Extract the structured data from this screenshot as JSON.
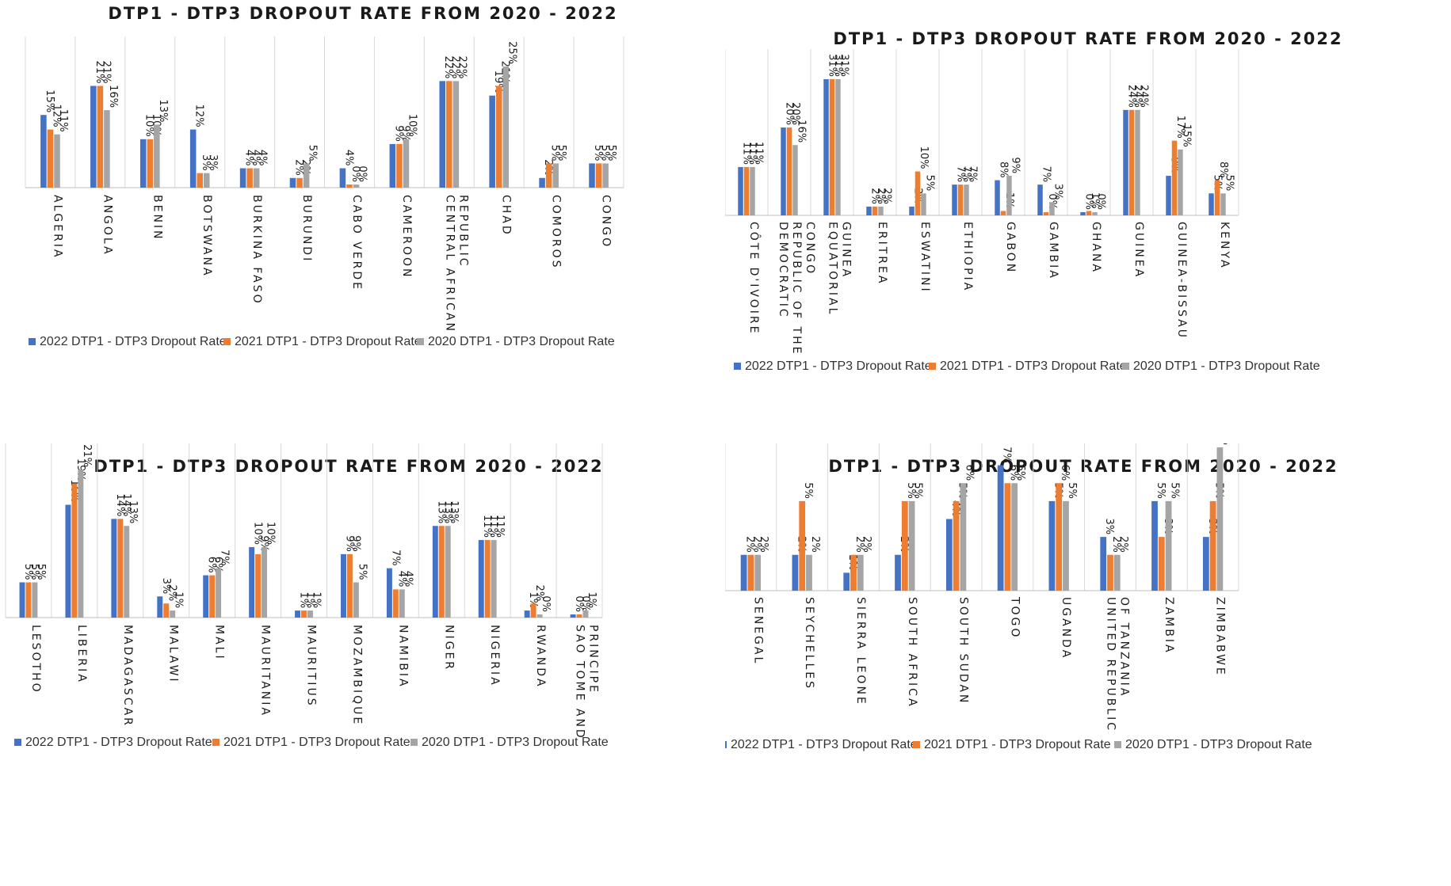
{
  "colors": {
    "2022": "#4472c4",
    "2021": "#ed7d31",
    "2020": "#a5a5a5"
  },
  "charts": [
    {
      "title": "DTP1 - DTP3 DROPOUT RATE FROM 2020 - 2022",
      "legend": [
        "2022 DTP1 - DTP3 Dropout Rate",
        "2021 DTP1 - DTP3 Dropout Rate",
        "2020 DTP1 - DTP3 Dropout Rate"
      ]
    },
    {
      "title": "DTP1 - DTP3 DROPOUT RATE FROM 2020 - 2022",
      "legend": [
        "2022 DTP1 - DTP3 Dropout Rate",
        "2021 DTP1 - DTP3 Dropout Rate",
        "2020 DTP1 - DTP3 Dropout Rate"
      ]
    },
    {
      "title": "DTP1 - DTP3 DROPOUT RATE FROM 2020 - 2022",
      "legend": [
        "2022 DTP1 - DTP3 Dropout Rate",
        "2021 DTP1 - DTP3 Dropout Rate",
        "2020 DTP1 - DTP3 Dropout Rate"
      ]
    },
    {
      "title": "DTP1 - DTP3 DROPOUT RATE FROM 2020 - 2022",
      "legend": [
        "2022 DTP1 - DTP3 Dropout Rate",
        "2021 DTP1 - DTP3 Dropout Rate",
        "2020 DTP1 - DTP3 Dropout Rate"
      ]
    }
  ],
  "chart_data": [
    {
      "type": "bar",
      "title": "DTP1 - DTP3 DROPOUT RATE FROM 2020 - 2022",
      "categories": [
        [
          "ALGERIA"
        ],
        [
          "ANGOLA"
        ],
        [
          "BENIN"
        ],
        [
          "BOTSWANA"
        ],
        [
          "BURKINA FASO"
        ],
        [
          "BURUNDI"
        ],
        [
          "CABO VERDE"
        ],
        [
          "CAMEROON"
        ],
        [
          "CENTRAL AFRICAN",
          "REPUBLIC"
        ],
        [
          "CHAD"
        ],
        [
          "COMOROS"
        ],
        [
          "CONGO"
        ]
      ],
      "series": [
        {
          "name": "2022 DTP1 - DTP3 Dropout Rate",
          "values": [
            15,
            21,
            10,
            12,
            4,
            2,
            4,
            9,
            22,
            19,
            2,
            5
          ]
        },
        {
          "name": "2021 DTP1 - DTP3 Dropout Rate",
          "values": [
            12,
            21,
            10,
            3,
            4,
            2,
            0,
            9,
            22,
            21,
            5,
            5
          ]
        },
        {
          "name": "2020 DTP1 - DTP3 Dropout Rate",
          "values": [
            11,
            16,
            13,
            3,
            4,
            5,
            0,
            10,
            22,
            25,
            5,
            5
          ]
        }
      ],
      "xlabel": "",
      "ylabel": "",
      "ylim": [
        0,
        25
      ],
      "legend_position": "bottom"
    },
    {
      "type": "bar",
      "title": "DTP1 - DTP3 DROPOUT RATE FROM 2020 - 2022",
      "categories": [
        [
          "CÔTE D'IVOIRE"
        ],
        [
          "DEMOCRATIC",
          "REPUBLIC OF THE",
          "CONGO"
        ],
        [
          "EQUATORIAL",
          "GUINEA"
        ],
        [
          "ERITREA"
        ],
        [
          "ESWATINI"
        ],
        [
          "ETHIOPIA"
        ],
        [
          "GABON"
        ],
        [
          "GAMBIA"
        ],
        [
          "GHANA"
        ],
        [
          "GUINEA"
        ],
        [
          "GUINEA-BISSAU"
        ],
        [
          "KENYA"
        ]
      ],
      "series": [
        {
          "name": "2022 DTP1 - DTP3 Dropout Rate",
          "values": [
            11,
            20,
            31,
            2,
            2,
            7,
            8,
            7,
            0,
            24,
            9,
            5
          ]
        },
        {
          "name": "2021 DTP1 - DTP3 Dropout Rate",
          "values": [
            11,
            20,
            31,
            2,
            10,
            7,
            1,
            0,
            1,
            24,
            17,
            8
          ]
        },
        {
          "name": "2020 DTP1 - DTP3 Dropout Rate",
          "values": [
            11,
            16,
            31,
            2,
            5,
            7,
            9,
            3,
            0,
            24,
            15,
            5
          ]
        }
      ],
      "xlabel": "",
      "ylabel": "",
      "ylim": [
        0,
        31
      ],
      "legend_position": "bottom"
    },
    {
      "type": "bar",
      "title": "DTP1 - DTP3 DROPOUT RATE FROM 2020 - 2022",
      "categories": [
        [
          "LESOTHO"
        ],
        [
          "LIBERIA"
        ],
        [
          "MADAGASCAR"
        ],
        [
          "MALAWI"
        ],
        [
          "MALI"
        ],
        [
          "MAURITANIA"
        ],
        [
          "MAURITIUS"
        ],
        [
          "MOZAMBIQUE"
        ],
        [
          "NAMIBIA"
        ],
        [
          "NIGER"
        ],
        [
          "NIGERIA"
        ],
        [
          "RWANDA"
        ],
        [
          "SAO TOME AND",
          "PRINCIPE"
        ]
      ],
      "series": [
        {
          "name": "2022 DTP1 - DTP3 Dropout Rate",
          "values": [
            5,
            16,
            14,
            3,
            6,
            10,
            1,
            9,
            7,
            13,
            11,
            1,
            0
          ]
        },
        {
          "name": "2021 DTP1 - DTP3 Dropout Rate",
          "values": [
            5,
            19,
            14,
            2,
            6,
            9,
            1,
            9,
            4,
            13,
            11,
            2,
            0
          ]
        },
        {
          "name": "2020 DTP1 - DTP3 Dropout Rate",
          "values": [
            5,
            21,
            13,
            1,
            7,
            10,
            1,
            5,
            4,
            13,
            11,
            0,
            1
          ]
        }
      ],
      "xlabel": "",
      "ylabel": "",
      "ylim": [
        0,
        21
      ],
      "legend_position": "bottom"
    },
    {
      "type": "bar",
      "title": "DTP1 - DTP3 DROPOUT RATE FROM 2020 - 2022",
      "categories": [
        [
          "SENEGAL"
        ],
        [
          "SEYCHELLES"
        ],
        [
          "SIERRA LEONE"
        ],
        [
          "SOUTH AFRICA"
        ],
        [
          "SOUTH SUDAN"
        ],
        [
          "TOGO"
        ],
        [
          "UGANDA"
        ],
        [
          "UNITED REPUBLIC",
          "OF TANZANIA"
        ],
        [
          "ZAMBIA"
        ],
        [
          "ZIMBABWE"
        ]
      ],
      "series": [
        {
          "name": "2022 DTP1 - DTP3 Dropout Rate",
          "values": [
            2,
            2,
            1,
            2,
            4,
            7,
            5,
            3,
            5,
            3
          ]
        },
        {
          "name": "2021 DTP1 - DTP3 Dropout Rate",
          "values": [
            2,
            5,
            2,
            5,
            5,
            6,
            6,
            2,
            3,
            5
          ]
        },
        {
          "name": "2020 DTP1 - DTP3 Dropout Rate",
          "values": [
            2,
            2,
            2,
            5,
            6,
            6,
            5,
            2,
            5,
            8
          ]
        }
      ],
      "xlabel": "",
      "ylabel": "",
      "ylim": [
        0,
        8
      ],
      "legend_position": "bottom"
    }
  ]
}
